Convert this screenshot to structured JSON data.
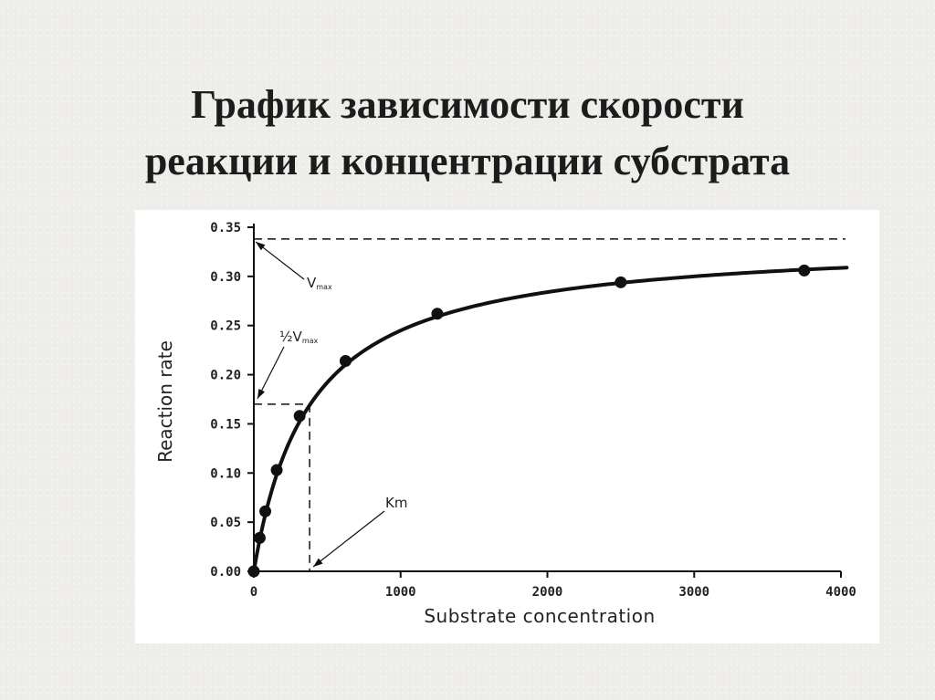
{
  "slide": {
    "title_line1": "График зависимости скорости",
    "title_line2": "реакции и концентрации субстрата"
  },
  "chart_data": {
    "type": "line",
    "title": "",
    "xlabel": "Substrate concentration",
    "ylabel": "Reaction rate",
    "xlim": [
      0,
      4000
    ],
    "ylim": [
      0,
      0.35
    ],
    "x_ticks": [
      0,
      1000,
      2000,
      3000,
      4000
    ],
    "x_tick_labels": [
      "0",
      "1000",
      "2000",
      "3000",
      "4000"
    ],
    "y_ticks": [
      0,
      0.05,
      0.1,
      0.15,
      0.2,
      0.25,
      0.3,
      0.35
    ],
    "y_tick_labels": [
      "0.00",
      "0.05",
      "0.10",
      "0.15",
      "0.20",
      "0.25",
      "0.30",
      "0.35"
    ],
    "grid": false,
    "legend": "none",
    "series": [
      {
        "x": [
          0,
          40,
          78,
          156,
          312,
          625,
          1250,
          2500,
          3750
        ],
        "y": [
          0,
          0.034,
          0.061,
          0.103,
          0.158,
          0.214,
          0.262,
          0.294,
          0.306
        ]
      }
    ],
    "curve": {
      "vmax": 0.338,
      "km": 380
    },
    "annotations": {
      "vmax_line": 0.338,
      "half_vmax": 0.17,
      "km": 380,
      "vmax_label_main": "V",
      "vmax_label_sub": "max",
      "half_vmax_label_prefix": "½V",
      "half_vmax_label_sub": "max",
      "km_label": "Km"
    }
  },
  "style": {
    "background": "#eeede9",
    "panel": "#ffffff",
    "ink": "#111111"
  }
}
